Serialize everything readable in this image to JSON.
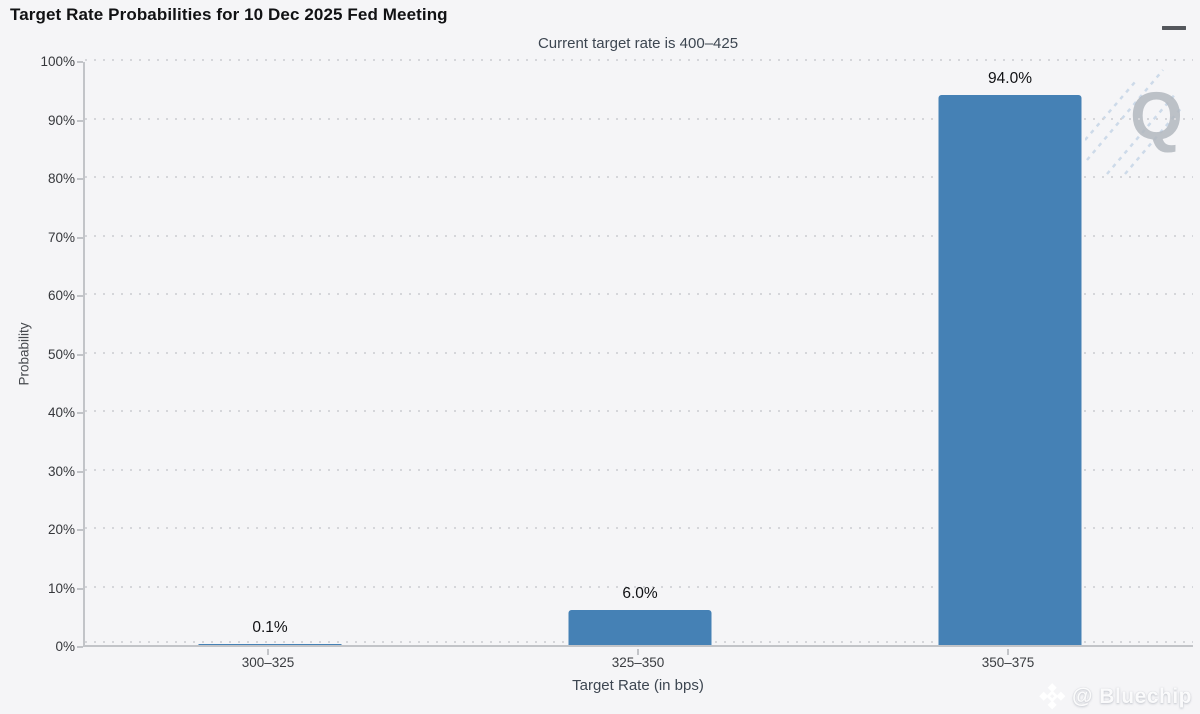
{
  "header": {
    "title": "Target Rate Probabilities for 10 Dec 2025 Fed Meeting",
    "menu_icon": "hamburger-icon"
  },
  "chart_data": {
    "type": "bar",
    "title": "Target Rate Probabilities for 10 Dec 2025 Fed Meeting",
    "subtitle": "Current target rate is 400–425",
    "categories": [
      "300–325",
      "325–350",
      "350–375"
    ],
    "values": [
      0.1,
      6.0,
      94.0
    ],
    "value_labels": [
      "0.1%",
      "6.0%",
      "94.0%"
    ],
    "xlabel": "Target Rate (in bps)",
    "ylabel": "Probability",
    "ylim": [
      0,
      100
    ],
    "ytick_step": 10,
    "ytick_suffix": "%",
    "grid": "dotted-horizontal",
    "legend": "none",
    "bar_color": "#4581b5"
  },
  "watermarks": {
    "q_logo_letter": "Q",
    "brand_label": "@ Bluechip",
    "brand_icon": "diamond-logo-icon"
  },
  "colors": {
    "background": "#f5f5f7",
    "bar": "#4581b5",
    "axis": "#c2c4c8",
    "gridline_dots": "#d5d6da",
    "title_text": "#111214",
    "subtitle_text": "#3d4651",
    "tick_text": "#35373b",
    "q_watermark": "#b3b8bf",
    "q_dashes": "#c9d8e8"
  }
}
